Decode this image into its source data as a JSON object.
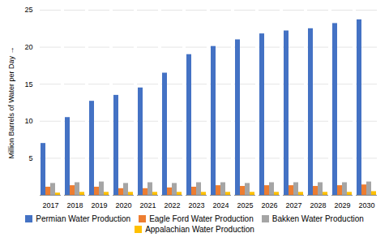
{
  "chart_data": {
    "type": "bar",
    "categories": [
      "2017",
      "2018",
      "2019",
      "2020",
      "2021",
      "2022",
      "2023",
      "2024",
      "2025",
      "2026",
      "2027",
      "2028",
      "2029",
      "2030"
    ],
    "series": [
      {
        "name": "Permian Water Production",
        "color": "#4472C4",
        "values": [
          7.0,
          10.5,
          12.7,
          13.5,
          14.5,
          16.5,
          19.0,
          20.1,
          21.0,
          21.8,
          22.2,
          22.5,
          23.2,
          23.7
        ]
      },
      {
        "name": "Eagle Ford Water Production",
        "color": "#ED7D31",
        "values": [
          1.1,
          1.3,
          1.1,
          0.9,
          0.9,
          1.0,
          1.1,
          1.3,
          1.2,
          1.3,
          1.3,
          1.2,
          1.3,
          1.4
        ]
      },
      {
        "name": "Bakken Water Production",
        "color": "#A5A5A5",
        "values": [
          1.6,
          1.7,
          1.8,
          1.6,
          1.7,
          1.6,
          1.7,
          1.7,
          1.6,
          1.7,
          1.7,
          1.7,
          1.7,
          1.8
        ]
      },
      {
        "name": "Appalachian Water Production",
        "color": "#FFC000",
        "values": [
          0.3,
          0.4,
          0.4,
          0.4,
          0.4,
          0.4,
          0.4,
          0.4,
          0.4,
          0.4,
          0.4,
          0.4,
          0.4,
          0.5
        ]
      }
    ],
    "ylabel": "Million Barrels of Water per Day",
    "ylim": [
      0,
      25
    ],
    "yticks": [
      5,
      10,
      15,
      20,
      25
    ],
    "grid": true,
    "legend": "bottom"
  }
}
